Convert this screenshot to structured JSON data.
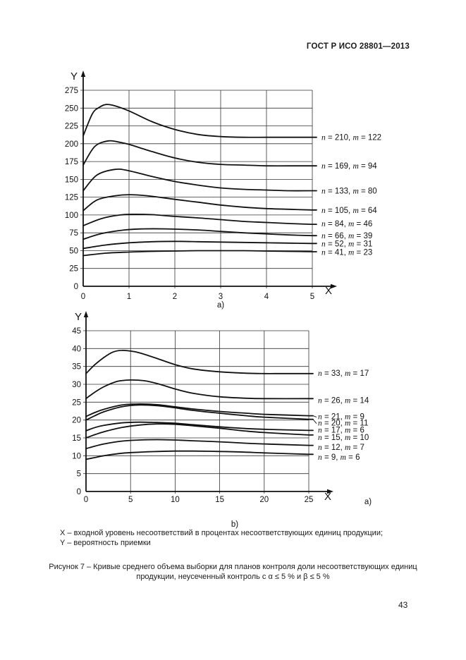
{
  "page": {
    "header": "ГОСТ Р ИСО 28801—2013",
    "page_number": "43",
    "footnote_lines": [
      "X – входной уровень несоответствий в процентах несоответствующих единиц продукции;",
      "Y – вероятность приемки"
    ],
    "caption_line1": "Рисунок 7 – Кривые среднего объема выборки для планов контроля доли несоответствующих единиц",
    "caption_line2": "продукции, неусеченный контроль с α ≤ 5 % и β ≤ 5 %"
  },
  "colors": {
    "ink": "#1a1a1a",
    "background": "#ffffff"
  },
  "chart_data": [
    {
      "id": "a",
      "type": "line",
      "title": "",
      "xlabel": "X",
      "ylabel": "Y",
      "sublabel": "a)",
      "xlim": [
        0,
        5
      ],
      "ylim": [
        0,
        275
      ],
      "xticks": [
        0,
        1,
        2,
        3,
        4,
        5
      ],
      "yticks": [
        0,
        25,
        50,
        75,
        100,
        125,
        150,
        175,
        200,
        225,
        250,
        275
      ],
      "grid": true,
      "legend_position": "right-of-curves",
      "series": [
        {
          "n": 210,
          "m": 122,
          "label_y": 209,
          "points": [
            [
              0,
              211
            ],
            [
              0.2,
              242
            ],
            [
              0.35,
              251
            ],
            [
              0.5,
              255
            ],
            [
              0.7,
              253
            ],
            [
              1,
              246
            ],
            [
              1.5,
              231
            ],
            [
              2,
              220
            ],
            [
              2.5,
              213
            ],
            [
              3,
              210
            ],
            [
              3.5,
              209
            ],
            [
              4,
              209
            ],
            [
              4.5,
              209
            ],
            [
              5,
              209
            ]
          ]
        },
        {
          "n": 169,
          "m": 94,
          "label_y": 169,
          "points": [
            [
              0,
              170
            ],
            [
              0.25,
              196
            ],
            [
              0.55,
              204
            ],
            [
              0.8,
              202
            ],
            [
              1,
              199
            ],
            [
              1.5,
              189
            ],
            [
              2,
              180
            ],
            [
              2.5,
              174
            ],
            [
              3,
              171
            ],
            [
              3.5,
              170
            ],
            [
              4,
              169
            ],
            [
              4.5,
              169
            ],
            [
              5,
              169
            ]
          ]
        },
        {
          "n": 133,
          "m": 80,
          "label_y": 134,
          "points": [
            [
              0,
              134
            ],
            [
              0.3,
              156
            ],
            [
              0.7,
              164
            ],
            [
              1,
              162
            ],
            [
              1.5,
              154
            ],
            [
              2,
              147
            ],
            [
              2.5,
              142
            ],
            [
              3,
              138
            ],
            [
              3.5,
              136
            ],
            [
              4,
              135
            ],
            [
              4.5,
              134
            ],
            [
              5,
              134
            ]
          ]
        },
        {
          "n": 105,
          "m": 64,
          "label_y": 107,
          "points": [
            [
              0,
              106
            ],
            [
              0.3,
              121
            ],
            [
              0.7,
              127
            ],
            [
              1,
              128.5
            ],
            [
              1.4,
              127
            ],
            [
              2,
              122
            ],
            [
              2.5,
              118
            ],
            [
              3,
              114
            ],
            [
              3.5,
              111
            ],
            [
              4,
              109
            ],
            [
              4.5,
              108
            ],
            [
              5,
              107
            ]
          ]
        },
        {
          "n": 84,
          "m": 46,
          "label_y": 88,
          "points": [
            [
              0,
              85
            ],
            [
              0.4,
              95
            ],
            [
              0.8,
              100
            ],
            [
              1.1,
              101
            ],
            [
              1.5,
              100.5
            ],
            [
              2,
              98
            ],
            [
              2.5,
              96
            ],
            [
              3,
              93.5
            ],
            [
              3.5,
              91
            ],
            [
              4,
              89.5
            ],
            [
              4.5,
              88
            ],
            [
              5,
              87
            ]
          ]
        },
        {
          "n": 66,
          "m": 39,
          "label_y": 71,
          "points": [
            [
              0,
              66
            ],
            [
              0.4,
              74
            ],
            [
              0.9,
              79
            ],
            [
              1.3,
              80.5
            ],
            [
              1.8,
              80.5
            ],
            [
              2.5,
              79
            ],
            [
              3,
              77
            ],
            [
              3.5,
              75
            ],
            [
              4,
              73.5
            ],
            [
              4.5,
              72
            ],
            [
              5,
              71
            ]
          ]
        },
        {
          "n": 52,
          "m": 31,
          "label_y": 60,
          "points": [
            [
              0,
              53
            ],
            [
              0.5,
              58
            ],
            [
              1,
              61
            ],
            [
              1.5,
              62.5
            ],
            [
              2,
              63
            ],
            [
              2.5,
              62.5
            ],
            [
              3,
              62
            ],
            [
              3.5,
              61.5
            ],
            [
              4,
              61
            ],
            [
              4.5,
              60.5
            ],
            [
              5,
              60
            ]
          ]
        },
        {
          "n": 41,
          "m": 23,
          "label_y": 48,
          "points": [
            [
              0,
              43
            ],
            [
              0.5,
              46.5
            ],
            [
              1,
              48
            ],
            [
              1.5,
              49
            ],
            [
              2,
              49.5
            ],
            [
              2.5,
              50
            ],
            [
              3,
              50
            ],
            [
              3.5,
              50
            ],
            [
              4,
              49.5
            ],
            [
              4.5,
              49
            ],
            [
              5,
              48.5
            ]
          ]
        }
      ]
    },
    {
      "id": "b",
      "type": "line",
      "title": "",
      "xlabel": "X",
      "ylabel": "Y",
      "sublabel": "b)",
      "extra_sublabel": "a)",
      "xlim": [
        0,
        25
      ],
      "ylim": [
        0,
        45
      ],
      "xticks": [
        0,
        5,
        10,
        15,
        20,
        25
      ],
      "yticks": [
        0,
        5,
        10,
        15,
        20,
        25,
        30,
        35,
        40,
        45
      ],
      "grid": true,
      "legend_position": "right-of-curves",
      "series": [
        {
          "n": 33,
          "m": 17,
          "label_y": 33.2,
          "points": [
            [
              0,
              33
            ],
            [
              1,
              35.5
            ],
            [
              2,
              37.5
            ],
            [
              3,
              39
            ],
            [
              4,
              39.5
            ],
            [
              5,
              39.3
            ],
            [
              6,
              38.8
            ],
            [
              8,
              37.2
            ],
            [
              10,
              35.5
            ],
            [
              12,
              34.3
            ],
            [
              15,
              33.5
            ],
            [
              18,
              33.1
            ],
            [
              20,
              33
            ],
            [
              22,
              33
            ],
            [
              25,
              33
            ]
          ]
        },
        {
          "n": 26,
          "m": 14,
          "label_y": 25.6,
          "points": [
            [
              0,
              26
            ],
            [
              1,
              27.8
            ],
            [
              2,
              29.3
            ],
            [
              3.5,
              30.8
            ],
            [
              5,
              31.2
            ],
            [
              6.5,
              31
            ],
            [
              8,
              30.2
            ],
            [
              10,
              28.7
            ],
            [
              12,
              27.5
            ],
            [
              15,
              26.5
            ],
            [
              18,
              26.1
            ],
            [
              20,
              26
            ],
            [
              25,
              26
            ]
          ]
        },
        {
          "n": 21,
          "m": 9,
          "label_y": 21.0,
          "leader": true,
          "points": [
            [
              0,
              21
            ],
            [
              1,
              22.1
            ],
            [
              2,
              23
            ],
            [
              4,
              24.2
            ],
            [
              6,
              24.5
            ],
            [
              8,
              24.3
            ],
            [
              10,
              23.7
            ],
            [
              12,
              23.1
            ],
            [
              15,
              22.4
            ],
            [
              18,
              21.9
            ],
            [
              20,
              21.6
            ],
            [
              25,
              21.2
            ]
          ]
        },
        {
          "n": 20,
          "m": 11,
          "label_y": 19.2,
          "leader": true,
          "points": [
            [
              0,
              20
            ],
            [
              1,
              21.2
            ],
            [
              2,
              22.3
            ],
            [
              4,
              23.7
            ],
            [
              6,
              24.2
            ],
            [
              8,
              24
            ],
            [
              10,
              23.4
            ],
            [
              12,
              22.7
            ],
            [
              15,
              21.9
            ],
            [
              18,
              21.2
            ],
            [
              20,
              20.8
            ],
            [
              25,
              20.2
            ]
          ]
        },
        {
          "n": 17,
          "m": 6,
          "label_y": 17.3,
          "points": [
            [
              0,
              17
            ],
            [
              1,
              17.9
            ],
            [
              2,
              18.5
            ],
            [
              4,
              19.2
            ],
            [
              6,
              19.4
            ],
            [
              8,
              19.3
            ],
            [
              10,
              19.1
            ],
            [
              12,
              18.7
            ],
            [
              15,
              18.1
            ],
            [
              18,
              17.6
            ],
            [
              20,
              17.4
            ],
            [
              25,
              17.1
            ]
          ]
        },
        {
          "n": 15,
          "m": 10,
          "label_y": 15.2,
          "points": [
            [
              0,
              15
            ],
            [
              1,
              15.9
            ],
            [
              2,
              16.7
            ],
            [
              4,
              17.9
            ],
            [
              6,
              18.6
            ],
            [
              8,
              18.9
            ],
            [
              10,
              18.8
            ],
            [
              12,
              18.4
            ],
            [
              15,
              17.7
            ],
            [
              18,
              16.9
            ],
            [
              20,
              16.5
            ],
            [
              25,
              15.8
            ]
          ]
        },
        {
          "n": 12,
          "m": 7,
          "label_y": 12.4,
          "points": [
            [
              0,
              12
            ],
            [
              1,
              12.7
            ],
            [
              2,
              13.3
            ],
            [
              4,
              14.1
            ],
            [
              6,
              14.4
            ],
            [
              8,
              14.5
            ],
            [
              10,
              14.4
            ],
            [
              12,
              14.2
            ],
            [
              15,
              13.9
            ],
            [
              18,
              13.5
            ],
            [
              20,
              13.3
            ],
            [
              25,
              12.9
            ]
          ]
        },
        {
          "n": 9,
          "m": 6,
          "label_y": 9.7,
          "points": [
            [
              0,
              9
            ],
            [
              1,
              9.5
            ],
            [
              2,
              10
            ],
            [
              4,
              10.7
            ],
            [
              6,
              11
            ],
            [
              8,
              11.2
            ],
            [
              10,
              11.3
            ],
            [
              12,
              11.3
            ],
            [
              15,
              11.2
            ],
            [
              18,
              11
            ],
            [
              20,
              10.8
            ],
            [
              25,
              10.4
            ]
          ]
        }
      ]
    }
  ]
}
